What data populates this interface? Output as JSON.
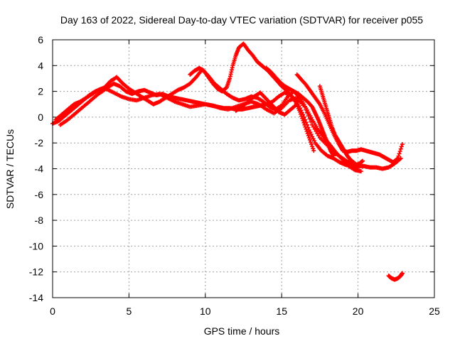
{
  "chart_data": {
    "type": "scatter",
    "title": "Day 163 of 2022, Sidereal Day-to-day VTEC variation (SDTVAR) for receiver p055",
    "xlabel": "GPS time / hours",
    "ylabel": "SDTVAR / TECUs",
    "xlim": [
      0,
      25
    ],
    "ylim": [
      -14,
      6
    ],
    "xticks": [
      0,
      5,
      10,
      15,
      20,
      25
    ],
    "yticks": [
      -14,
      -12,
      -10,
      -8,
      -6,
      -4,
      -2,
      0,
      2,
      4,
      6
    ],
    "grid": true,
    "marker": "plus",
    "series": [
      {
        "name": "track-a",
        "color": "#ff0000",
        "x": [
          0.0,
          0.4,
          0.8,
          1.2,
          1.6,
          2.0,
          2.4,
          2.8,
          3.2,
          3.6,
          4.0,
          4.4,
          4.8,
          5.2,
          5.6,
          6.0,
          6.4,
          6.8,
          7.2,
          7.6,
          8.0,
          8.4,
          8.8,
          9.2,
          9.6,
          10.0,
          10.4,
          10.8,
          11.2,
          11.6,
          12.0,
          12.4,
          12.8,
          13.2,
          13.6,
          14.0,
          14.4,
          14.8,
          15.2,
          15.6,
          16.0,
          16.4,
          16.8,
          17.2,
          17.6,
          18.0,
          18.4,
          18.8,
          19.2,
          19.6,
          20.0,
          20.4,
          20.8,
          21.2,
          21.6,
          22.0,
          22.4,
          22.8
        ],
        "y": [
          -0.5,
          -0.3,
          0.1,
          0.5,
          0.9,
          1.3,
          1.7,
          2.0,
          2.2,
          2.3,
          2.6,
          2.4,
          2.0,
          1.8,
          2.0,
          2.1,
          1.9,
          1.7,
          1.8,
          1.6,
          1.5,
          1.4,
          1.3,
          1.2,
          1.1,
          1.0,
          0.9,
          0.8,
          0.7,
          0.7,
          0.6,
          0.6,
          0.7,
          0.8,
          0.9,
          1.0,
          1.2,
          1.6,
          1.9,
          1.7,
          1.2,
          0.2,
          -1.0,
          -2.0,
          -2.6,
          -3.0,
          -3.2,
          -3.5,
          -3.7,
          -3.8,
          -3.8,
          -3.8,
          -3.9,
          -3.9,
          -4.0,
          -3.9,
          -3.6,
          -3.2
        ]
      },
      {
        "name": "track-b",
        "color": "#ff0000",
        "x": [
          0.2,
          0.6,
          1.0,
          1.4,
          1.8,
          2.2,
          2.6,
          3.0,
          3.4,
          3.8,
          4.2,
          4.6,
          5.0,
          5.4,
          5.8,
          6.2,
          6.6,
          7.0,
          7.4,
          7.8,
          8.2,
          8.6,
          9.0,
          9.4,
          9.8,
          10.2,
          10.6,
          11.0,
          11.4,
          11.8,
          12.2,
          12.6,
          13.0,
          13.4,
          13.8,
          14.2,
          14.6,
          15.0,
          15.4,
          15.8,
          16.2,
          16.6,
          17.0,
          17.4,
          17.8,
          18.2,
          18.6,
          19.0,
          19.4,
          19.8,
          20.2
        ],
        "y": [
          -0.2,
          0.2,
          0.6,
          1.0,
          1.2,
          1.5,
          1.8,
          2.1,
          2.3,
          2.8,
          3.1,
          2.6,
          2.2,
          1.9,
          1.6,
          1.3,
          1.0,
          1.2,
          1.5,
          1.8,
          2.1,
          2.3,
          2.6,
          3.1,
          3.7,
          3.2,
          2.6,
          2.2,
          1.8,
          1.5,
          1.3,
          1.4,
          1.6,
          1.5,
          1.2,
          0.8,
          0.6,
          0.9,
          1.6,
          2.0,
          1.5,
          0.7,
          -0.2,
          -1.0,
          -1.6,
          -2.2,
          -2.8,
          -3.3,
          -3.8,
          -4.1,
          -4.2
        ]
      },
      {
        "name": "track-c",
        "color": "#ff0000",
        "x": [
          0.5,
          1.0,
          1.5,
          2.0,
          2.5,
          3.0,
          3.5,
          4.0,
          4.5,
          5.0,
          5.5,
          6.0,
          6.5,
          7.0,
          7.5,
          8.0,
          8.5,
          9.0,
          9.5,
          10.0,
          10.5,
          11.0,
          11.5,
          12.0,
          12.5,
          13.0,
          13.5,
          14.0,
          14.5,
          15.0,
          15.5,
          16.0,
          16.5,
          17.0,
          17.5,
          18.0,
          18.5,
          19.0,
          19.5,
          20.0
        ],
        "y": [
          -0.6,
          -0.2,
          0.3,
          0.8,
          1.3,
          1.8,
          2.2,
          1.9,
          1.6,
          1.4,
          1.3,
          1.5,
          1.7,
          1.8,
          1.5,
          1.2,
          1.0,
          0.8,
          0.9,
          1.0,
          0.9,
          0.7,
          0.6,
          0.8,
          1.0,
          1.2,
          1.0,
          0.6,
          0.3,
          0.7,
          1.3,
          1.5,
          0.8,
          -0.6,
          -1.6,
          -2.2,
          -2.8,
          -3.2,
          -3.6,
          -3.9
        ]
      },
      {
        "name": "track-d",
        "color": "#ff0000",
        "x": [
          9.0,
          9.3,
          9.6,
          9.9,
          10.2,
          10.5,
          10.8,
          11.1,
          11.4,
          11.6,
          11.8,
          12.0,
          12.2,
          12.5,
          12.8,
          13.1,
          13.4,
          13.6,
          13.8,
          14.1,
          14.4,
          14.7,
          15.0,
          15.3,
          15.6,
          15.9,
          16.2,
          16.5,
          16.8,
          17.1
        ],
        "y": [
          3.3,
          3.6,
          3.8,
          3.6,
          3.1,
          2.6,
          2.2,
          2.0,
          2.3,
          3.0,
          4.0,
          4.8,
          5.4,
          5.7,
          5.2,
          4.8,
          4.3,
          4.1,
          3.9,
          3.6,
          3.2,
          2.8,
          2.4,
          2.1,
          1.7,
          1.2,
          0.4,
          -0.6,
          -1.6,
          -2.6
        ]
      },
      {
        "name": "track-e",
        "color": "#ff0000",
        "x": [
          14.0,
          14.3,
          14.6,
          14.9,
          15.2,
          15.5,
          15.8,
          16.1,
          16.4,
          16.7,
          17.0,
          17.2,
          17.4,
          17.6,
          17.8,
          18.0,
          18.2,
          18.4
        ],
        "y": [
          3.8,
          3.5,
          3.1,
          2.7,
          2.4,
          2.2,
          2.0,
          1.8,
          1.5,
          1.2,
          0.8,
          0.3,
          -0.2,
          -0.8,
          -1.4,
          -2.0,
          -2.6,
          -3.0
        ]
      },
      {
        "name": "track-f",
        "color": "#ff0000",
        "x": [
          16.0,
          16.3,
          16.6,
          16.9,
          17.2,
          17.5,
          17.8,
          18.1,
          18.4,
          18.7,
          19.0,
          19.3,
          19.6,
          19.9,
          20.2,
          20.5,
          20.8,
          21.1,
          21.4,
          21.7,
          22.0,
          22.3,
          22.6,
          22.9
        ],
        "y": [
          3.3,
          2.9,
          2.5,
          2.0,
          1.5,
          1.0,
          0.3,
          -0.5,
          -1.3,
          -2.0,
          -2.6,
          -2.7,
          -2.6,
          -2.6,
          -2.5,
          -2.6,
          -2.7,
          -2.8,
          -2.9,
          -3.1,
          -3.3,
          -3.5,
          -3.2,
          -2.1
        ]
      },
      {
        "name": "track-g",
        "color": "#ff0000",
        "x": [
          17.5,
          17.7,
          17.9,
          18.1,
          18.3,
          18.5,
          18.7,
          18.9,
          19.1,
          19.3,
          19.5,
          19.7,
          19.9,
          20.1,
          20.3
        ],
        "y": [
          2.4,
          1.6,
          0.8,
          0.0,
          -0.8,
          -1.4,
          -1.8,
          -2.2,
          -2.6,
          -3.0,
          -3.3,
          -3.5,
          -3.7,
          -3.6,
          -3.4
        ]
      },
      {
        "name": "track-h",
        "color": "#ff0000",
        "x": [
          12.0,
          12.4,
          12.8,
          13.2,
          13.6,
          14.0,
          14.4,
          14.8,
          15.2,
          15.6,
          16.0
        ],
        "y": [
          0.5,
          0.8,
          1.2,
          1.6,
          1.9,
          1.4,
          0.9,
          0.4,
          0.2,
          0.6,
          1.0
        ]
      },
      {
        "name": "track-i",
        "color": "#ff0000",
        "x": [
          22.0,
          22.2,
          22.4,
          22.6,
          22.8,
          22.9
        ],
        "y": [
          -12.3,
          -12.5,
          -12.6,
          -12.5,
          -12.3,
          -12.1
        ]
      }
    ]
  }
}
